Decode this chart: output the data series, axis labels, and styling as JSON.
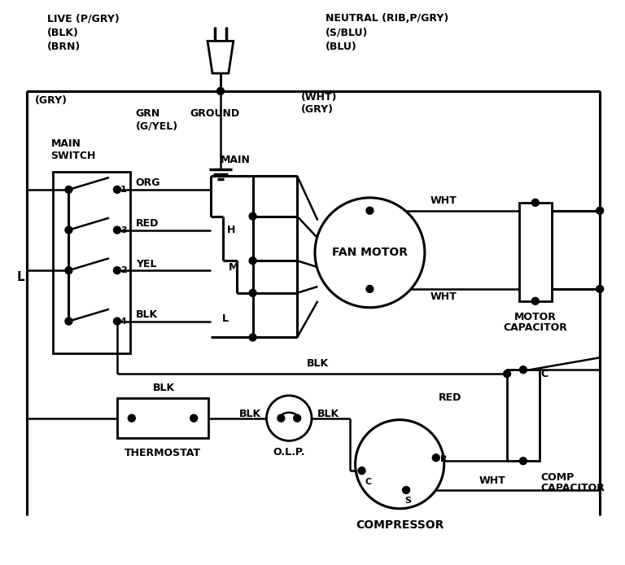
{
  "bg_color": "#ffffff",
  "fig_width": 7.68,
  "fig_height": 6.94,
  "dpi": 100,
  "labels": {
    "live": "LIVE (P/GRY)",
    "blk_top": "(BLK)",
    "brn": "(BRN)",
    "neutral": "NEUTRAL (RIB,P/GRY)",
    "sblu": "(S/BLU)",
    "blu": "(BLU)",
    "gry_left": "(GRY)",
    "wht_mid": "(WHT)",
    "gry_mid": "(GRY)",
    "grn": "GRN",
    "gyel": "(G/YEL)",
    "ground": "GROUND",
    "main_switch1": "MAIN",
    "main_switch2": "SWITCH",
    "L_label": "L",
    "org": "ORG",
    "red": "RED",
    "yel": "YEL",
    "blk": "BLK",
    "main_tap": "MAIN",
    "H": "H",
    "M": "M",
    "Ll": "L",
    "fan_motor1": "FAN MOTOR",
    "wht1": "WHT",
    "wht2": "WHT",
    "motor_cap1": "MOTOR",
    "motor_cap2": "CAPACITOR",
    "blk_bot": "BLK",
    "blk_th": "BLK",
    "blk_olp": "BLK",
    "thermostat": "THERMOSTAT",
    "olp": "O.L.P.",
    "red_comp": "RED",
    "C_label": "C",
    "comp_cap1": "COMP",
    "comp_cap2": "CAPACITOR",
    "C_term": "C",
    "R_term": "R",
    "S_term": "S",
    "wht_comp": "WHT",
    "compressor": "COMPRESSOR"
  }
}
